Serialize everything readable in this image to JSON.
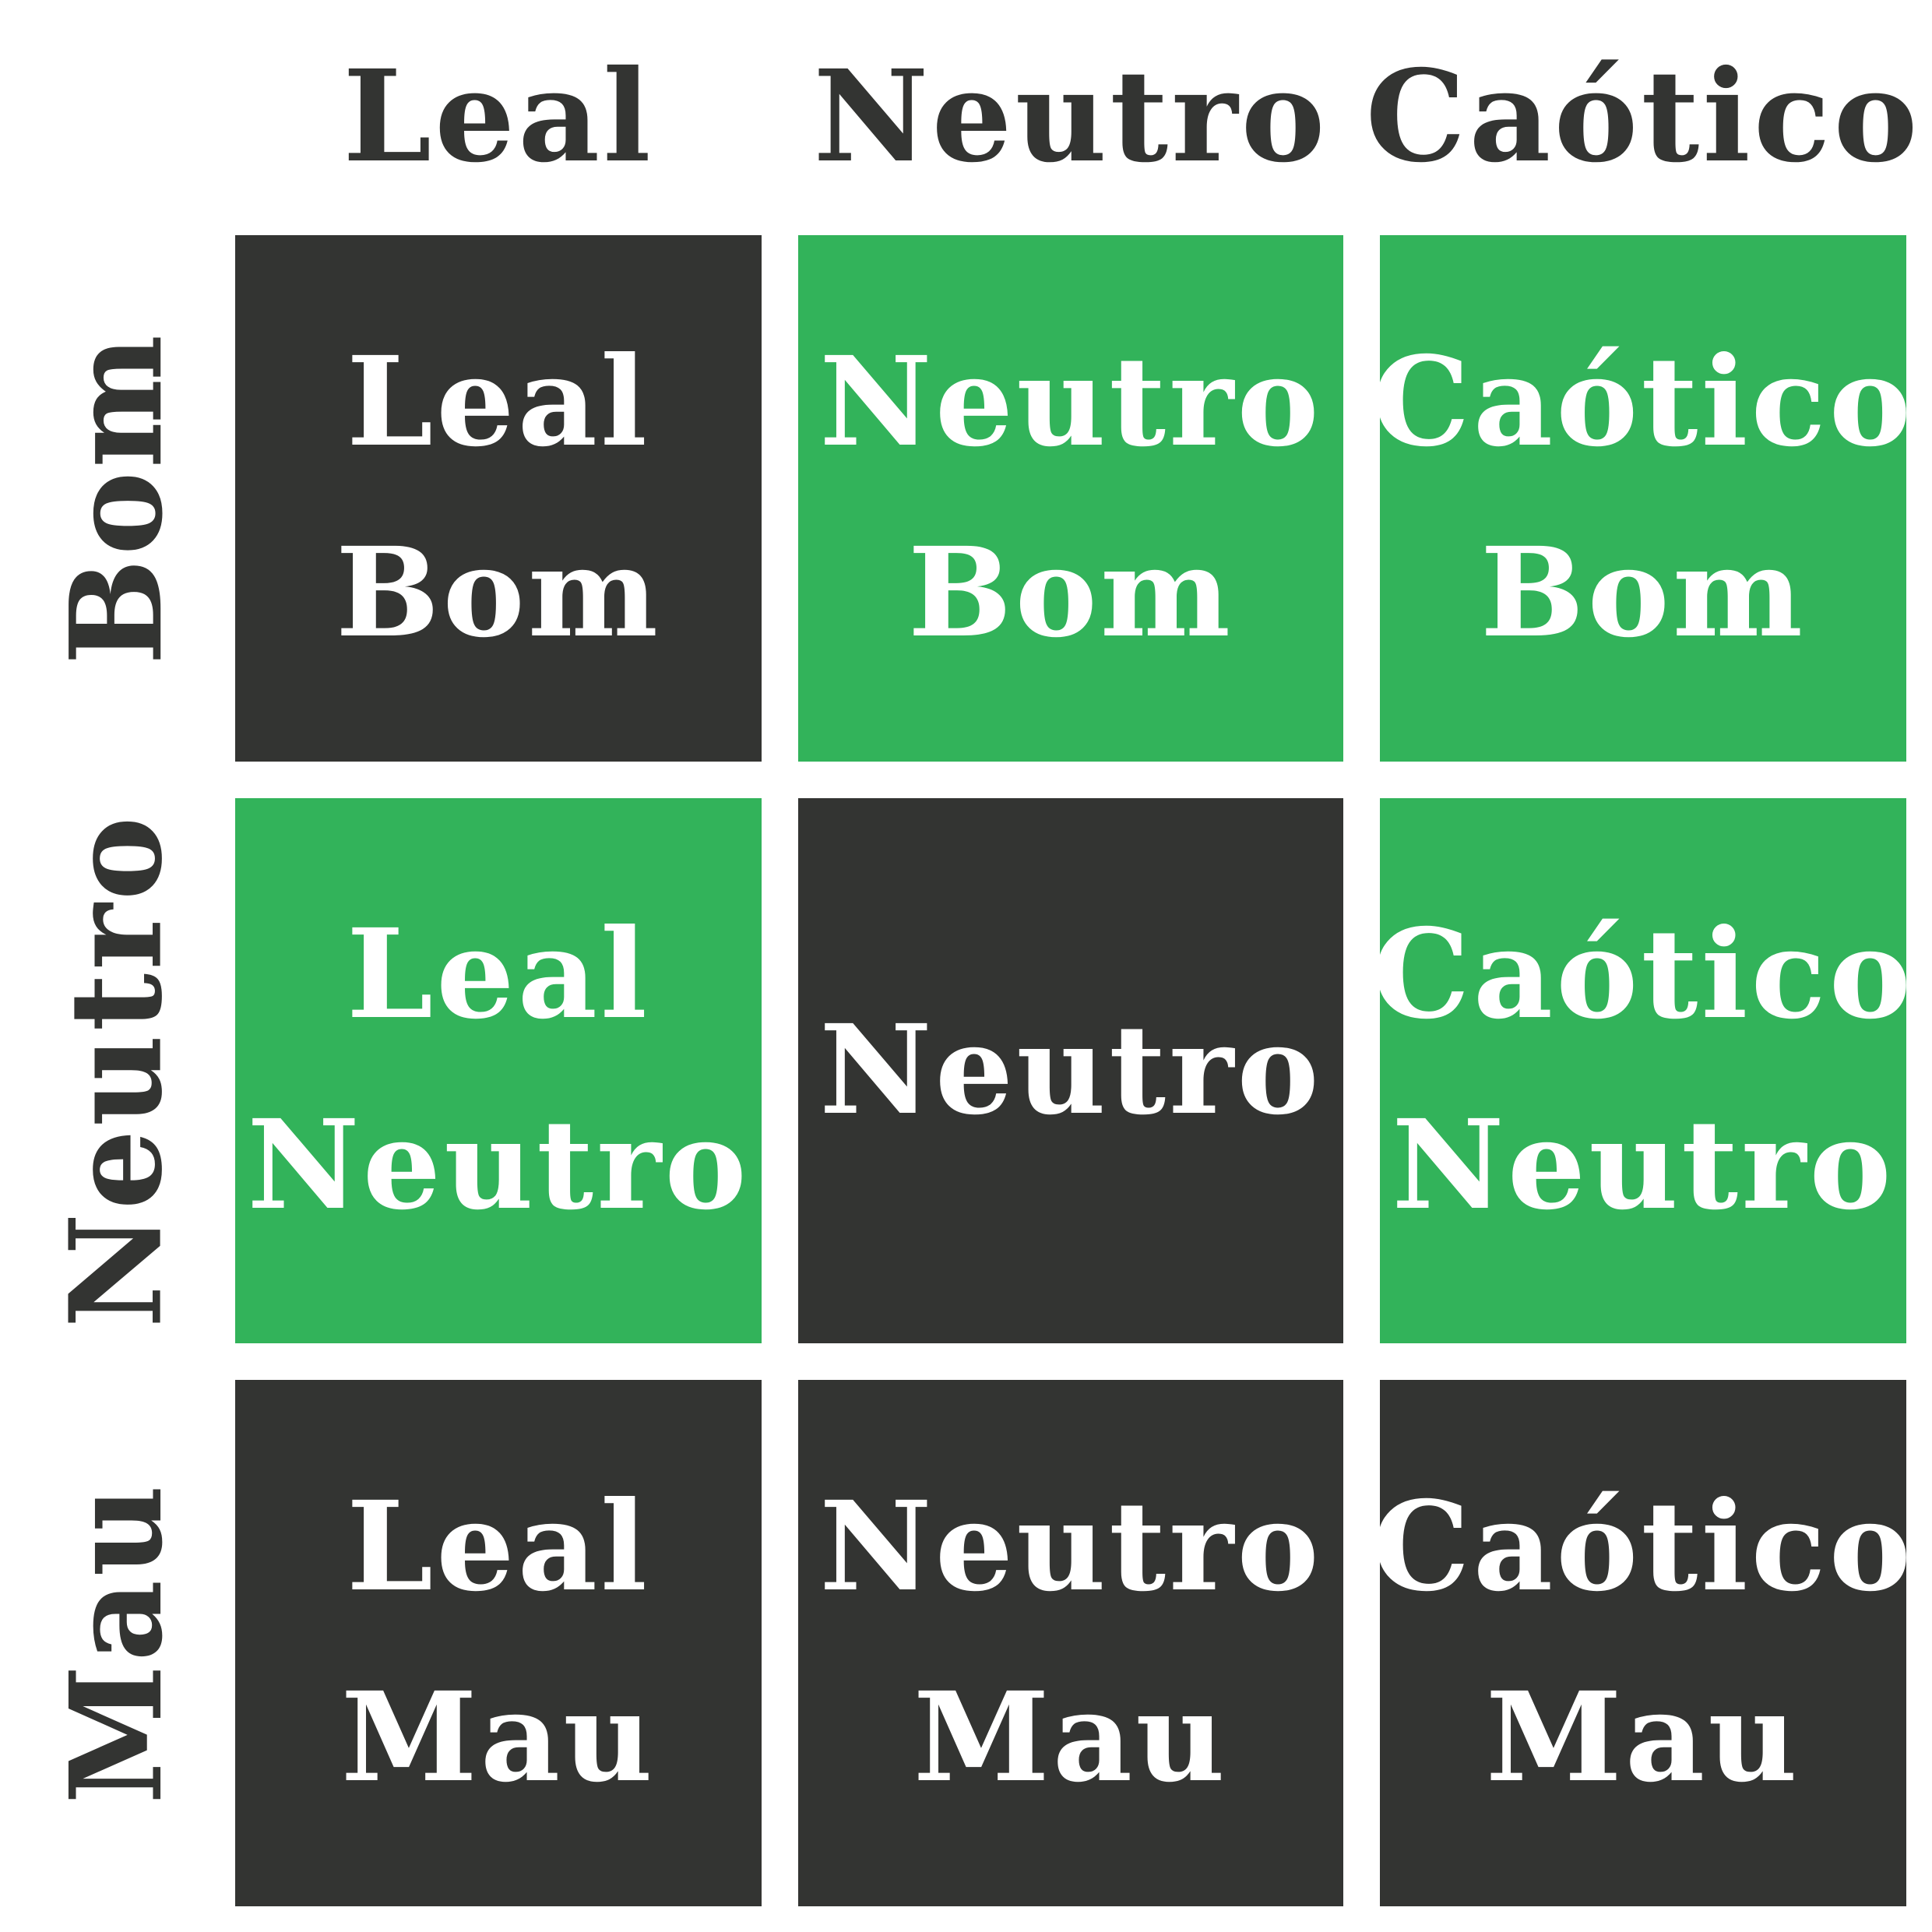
{
  "colors": {
    "dark": "#333432",
    "green": "#32b35a",
    "background": "#ffffff",
    "text_light": "#ffffff"
  },
  "columns": [
    "Leal",
    "Neutro",
    "Caótico"
  ],
  "rows": [
    "Bom",
    "Neutro",
    "Mau"
  ],
  "cells": [
    [
      {
        "line1": "Leal",
        "line2": "Bom",
        "fill": "dark"
      },
      {
        "line1": "Neutro",
        "line2": "Bom",
        "fill": "green"
      },
      {
        "line1": "Caótico",
        "line2": "Bom",
        "fill": "green"
      }
    ],
    [
      {
        "line1": "Leal",
        "line2": "Neutro",
        "fill": "green"
      },
      {
        "line1": "Neutro",
        "line2": "",
        "fill": "dark"
      },
      {
        "line1": "Caótico",
        "line2": "Neutro",
        "fill": "green"
      }
    ],
    [
      {
        "line1": "Leal",
        "line2": "Mau",
        "fill": "dark"
      },
      {
        "line1": "Neutro",
        "line2": "Mau",
        "fill": "dark"
      },
      {
        "line1": "Caótico",
        "line2": "Mau",
        "fill": "dark"
      }
    ]
  ]
}
